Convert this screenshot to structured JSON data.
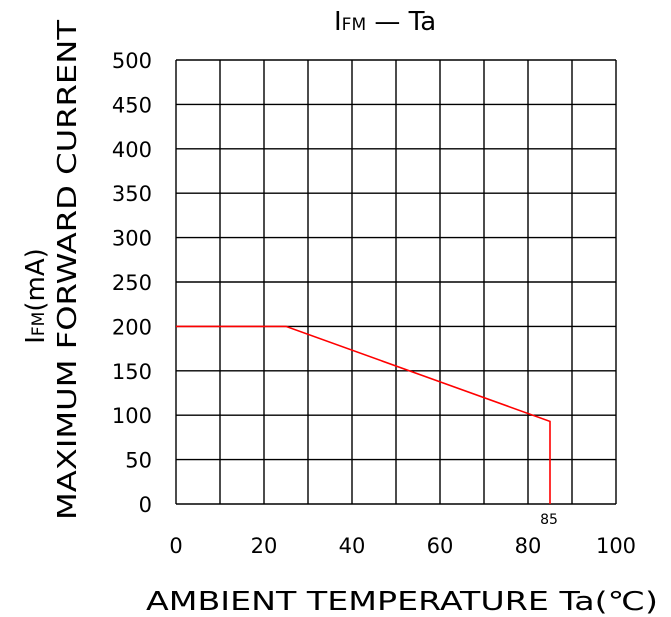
{
  "chart_data": {
    "type": "line",
    "title": {
      "main": "I",
      "sub": "FM",
      "rest": " — Ta"
    },
    "xlabel": "AMBIENT  TEMPERATURE  Ta(℃)",
    "ylabel_line1": {
      "main": "I",
      "sub": "FM",
      "rest": "(mA)"
    },
    "ylabel_line2": "MAXIMUM  FORWARD  CURRENT",
    "xlim": [
      0,
      100
    ],
    "ylim": [
      0,
      500
    ],
    "x_ticks": [
      "0",
      "20",
      "40",
      "60",
      "80",
      "100"
    ],
    "y_ticks": [
      "0",
      "50",
      "100",
      "150",
      "200",
      "250",
      "300",
      "350",
      "400",
      "450",
      "500"
    ],
    "grid": true,
    "series": [
      {
        "x": [
          0,
          25,
          85,
          85
        ],
        "y": [
          200,
          200,
          93,
          0
        ],
        "color": "#ff0000"
      }
    ],
    "annotations": [
      {
        "text": "85",
        "x": 85,
        "y": 0
      }
    ]
  }
}
